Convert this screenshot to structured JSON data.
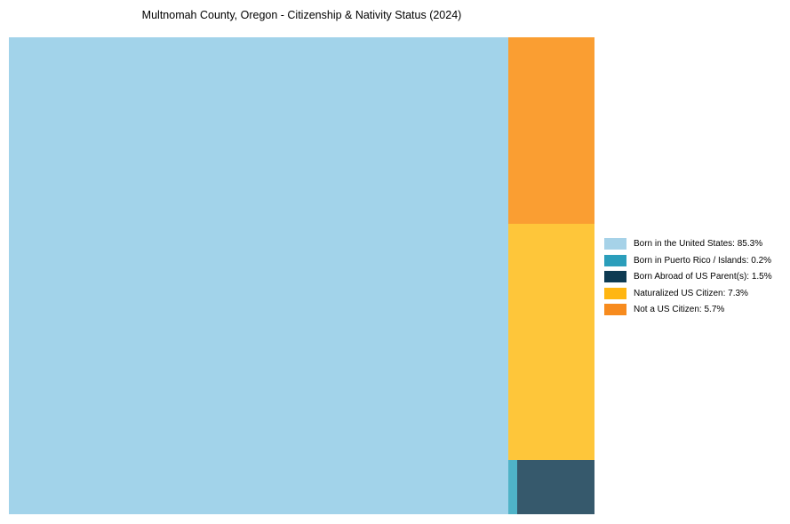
{
  "chart_data": {
    "type": "treemap",
    "title": "Multnomah County, Oregon - Citizenship & Nativity Status (2024)",
    "unit": "%",
    "legend_position": "right-center",
    "grid": false,
    "categories": [
      "Born in the United States",
      "Born in Puerto Rico / Islands",
      "Born Abroad of US Parent(s)",
      "Naturalized US Citizen",
      "Not a US Citizen"
    ],
    "values": [
      85.3,
      0.2,
      1.5,
      7.3,
      5.7
    ]
  },
  "treemap": {
    "tiles": [
      {
        "name": "Born in the United States",
        "share": "85.3%",
        "color": "#A2D3EA"
      },
      {
        "name": "Not a US Citizen",
        "share": "5.7%",
        "color": "#FA9E32"
      },
      {
        "name": "Naturalized US Citizen",
        "share": "7.3%",
        "color": "#FEC63A"
      },
      {
        "name": "Born in Puerto Rico / Islands",
        "share": "0.2%",
        "color": "#4FB3C8"
      },
      {
        "name": "Born Abroad of US Parent(s)",
        "share": "1.5%",
        "color": "#36596C"
      }
    ]
  },
  "legend": {
    "items": [
      {
        "label": "Born in the United States: 85.3%",
        "color": "#A6D2E8"
      },
      {
        "label": "Born in Puerto Rico / Islands: 0.2%",
        "color": "#2B9EBB"
      },
      {
        "label": "Born Abroad of US Parent(s): 1.5%",
        "color": "#0D3A52"
      },
      {
        "label": "Naturalized US Citizen: 7.3%",
        "color": "#FFB612"
      },
      {
        "label": "Not a US Citizen: 5.7%",
        "color": "#F78B1E"
      }
    ]
  }
}
